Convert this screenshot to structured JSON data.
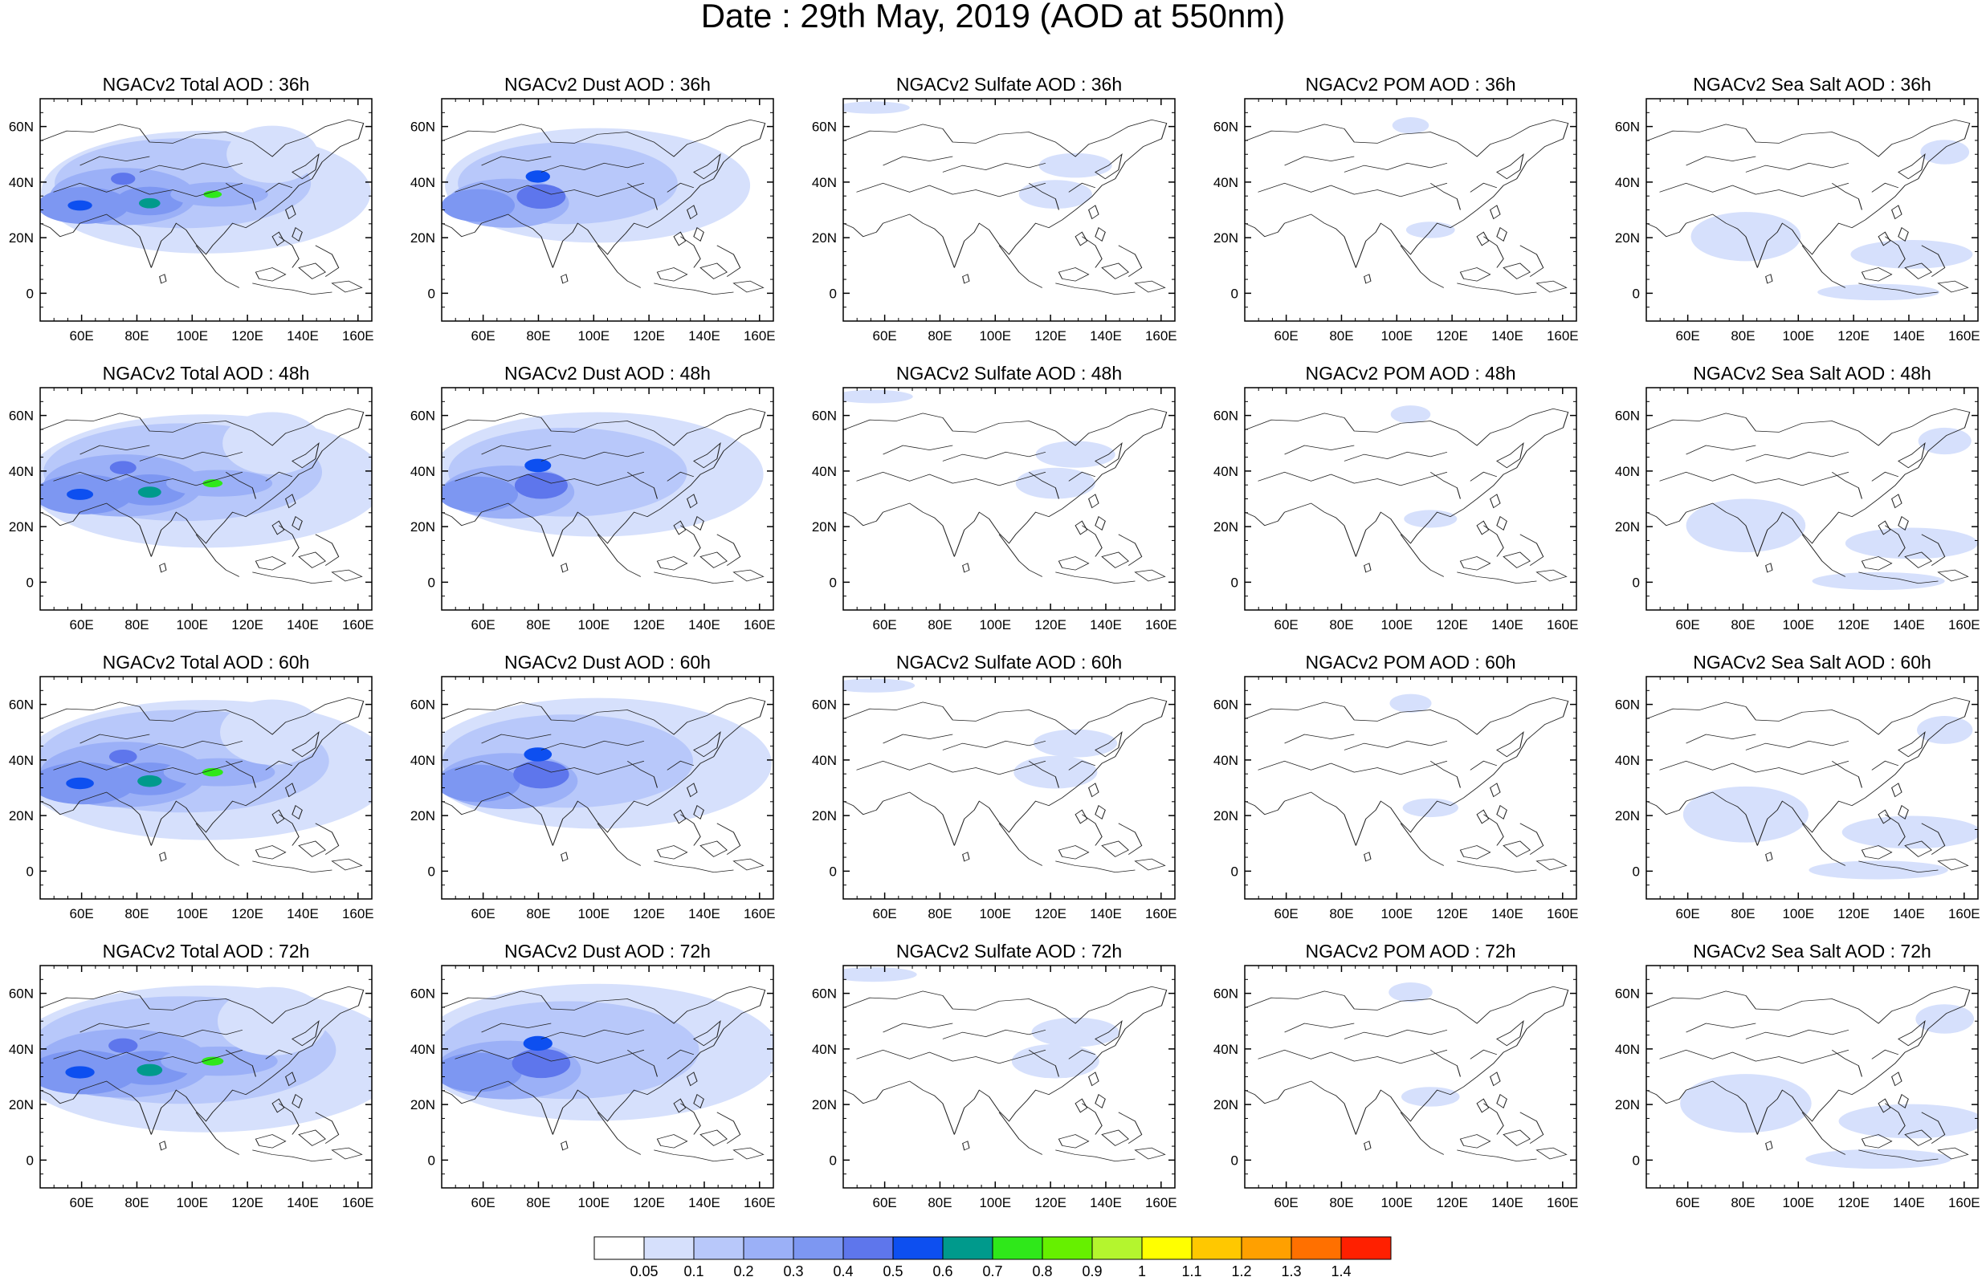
{
  "title": "Date : 29th May, 2019 (AOD at 550nm)",
  "panels": [
    {
      "title": "NGACv2 Total AOD : 36h",
      "species": "total",
      "hour": "36h"
    },
    {
      "title": "NGACv2 Dust AOD : 36h",
      "species": "dust",
      "hour": "36h"
    },
    {
      "title": "NGACv2 Sulfate AOD : 36h",
      "species": "sulfate",
      "hour": "36h"
    },
    {
      "title": "NGACv2 POM AOD : 36h",
      "species": "pom",
      "hour": "36h"
    },
    {
      "title": "NGACv2 Sea Salt AOD : 36h",
      "species": "seasalt",
      "hour": "36h"
    },
    {
      "title": "NGACv2 Total AOD : 48h",
      "species": "total",
      "hour": "48h"
    },
    {
      "title": "NGACv2 Dust AOD : 48h",
      "species": "dust",
      "hour": "48h"
    },
    {
      "title": "NGACv2 Sulfate AOD : 48h",
      "species": "sulfate",
      "hour": "48h"
    },
    {
      "title": "NGACv2 POM AOD : 48h",
      "species": "pom",
      "hour": "48h"
    },
    {
      "title": "NGACv2 Sea Salt AOD : 48h",
      "species": "seasalt",
      "hour": "48h"
    },
    {
      "title": "NGACv2 Total AOD : 60h",
      "species": "total",
      "hour": "60h"
    },
    {
      "title": "NGACv2 Dust AOD : 60h",
      "species": "dust",
      "hour": "60h"
    },
    {
      "title": "NGACv2 Sulfate AOD : 60h",
      "species": "sulfate",
      "hour": "60h"
    },
    {
      "title": "NGACv2 POM AOD : 60h",
      "species": "pom",
      "hour": "60h"
    },
    {
      "title": "NGACv2 Sea Salt AOD : 60h",
      "species": "seasalt",
      "hour": "60h"
    },
    {
      "title": "NGACv2 Total AOD : 72h",
      "species": "total",
      "hour": "72h"
    },
    {
      "title": "NGACv2 Dust AOD : 72h",
      "species": "dust",
      "hour": "72h"
    },
    {
      "title": "NGACv2 Sulfate AOD : 72h",
      "species": "sulfate",
      "hour": "72h"
    },
    {
      "title": "NGACv2 POM AOD : 72h",
      "species": "pom",
      "hour": "72h"
    },
    {
      "title": "NGACv2 Sea Salt  AOD : 72h",
      "species": "seasalt",
      "hour": "72h"
    }
  ],
  "map_extent": {
    "lon_min": 45,
    "lon_max": 165,
    "lat_min": -10,
    "lat_max": 70
  },
  "lon_ticks": [
    60,
    80,
    100,
    120,
    140,
    160
  ],
  "lon_tick_labels": [
    "60E",
    "80E",
    "100E",
    "120E",
    "140E",
    "160E"
  ],
  "lat_ticks": [
    0,
    20,
    40,
    60
  ],
  "lat_tick_labels": [
    "0",
    "20N",
    "40N",
    "60N"
  ],
  "colorbar": {
    "colors": [
      "#ffffff",
      "#d6e0fc",
      "#b8c8fa",
      "#9bb0f7",
      "#7d97f2",
      "#5e76ec",
      "#0d4ff0",
      "#009a8c",
      "#2fe81a",
      "#66f000",
      "#b4f52e",
      "#ffff00",
      "#ffc800",
      "#ffa000",
      "#ff7000",
      "#ff2000"
    ],
    "labels": [
      "0.05",
      "0.1",
      "0.2",
      "0.3",
      "0.4",
      "0.5",
      "0.6",
      "0.7",
      "0.8",
      "0.9",
      "1",
      "1.1",
      "1.2",
      "1.3",
      "1.4"
    ]
  }
}
